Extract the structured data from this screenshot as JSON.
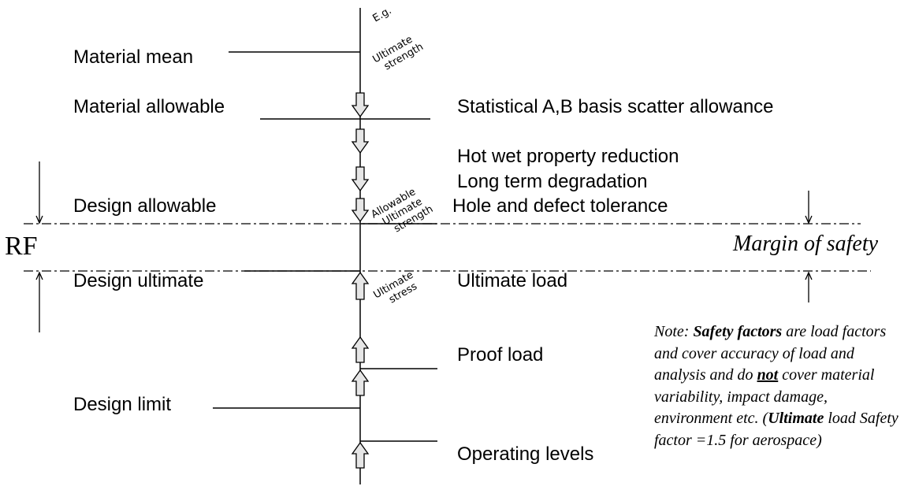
{
  "left_labels": {
    "material_mean": "Material mean",
    "material_allowable": "Material allowable",
    "design_allowable": "Design allowable",
    "design_ultimate": "Design ultimate",
    "design_limit": "Design limit"
  },
  "right_labels": {
    "scatter": "Statistical A,B basis scatter allowance",
    "hot_wet": "Hot wet property reduction",
    "long_term": "Long term degradation",
    "hole_defect": "Hole and defect tolerance",
    "ultimate_load": "Ultimate load",
    "proof_load": "Proof load",
    "operating_levels": "Operating levels"
  },
  "handwritten": {
    "eg": "E.g.",
    "ultimate_strength_1": "Ultimate",
    "ultimate_strength_2": "strength",
    "allowable_1": "Allowable",
    "allowable_2": "Ultimate",
    "allowable_3": "strength",
    "ultimate_stress_1": "Ultimate",
    "ultimate_stress_2": "stress"
  },
  "rf_label": "RF",
  "margin_label": "Margin of safety",
  "note": {
    "prefix": "Note: ",
    "safety_factors": "Safety factors",
    "part1": " are load factors and cover accuracy of load and analysis and do ",
    "not": "not",
    "part2": " cover material variability, impact damage, environment etc.",
    "paren_open": "(",
    "ultimate": "Ultimate",
    "part3": " load Safety factor =1.5 for aerospace)"
  }
}
